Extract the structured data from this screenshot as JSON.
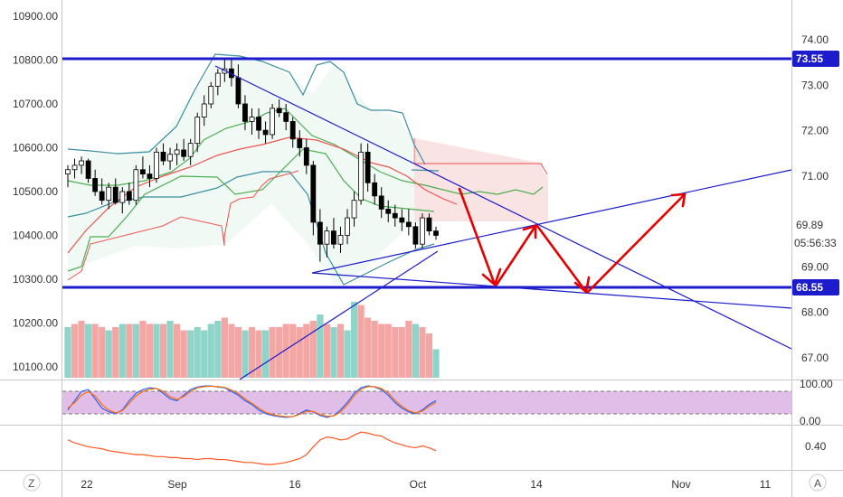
{
  "chart_data": {
    "type": "candlestick",
    "left_axis": {
      "ticks": [
        "10900.00",
        "10800.00",
        "10700.00",
        "10600.00",
        "10500.00",
        "10400.00",
        "10300.00",
        "10200.00",
        "10100.00"
      ],
      "range": [
        10075,
        10920
      ]
    },
    "right_axis": {
      "ticks": [
        "74.00",
        "73.00",
        "72.00",
        "71.00",
        "70.00",
        "69.00",
        "68.00",
        "67.00"
      ],
      "range": [
        66.6,
        74.5
      ]
    },
    "x_axis": {
      "ticks": [
        "22",
        "Sep",
        "16",
        "Oct",
        "14",
        "Nov",
        "11"
      ]
    },
    "price_badges": {
      "upper_level": "73.55",
      "current": "69.89",
      "countdown": "05:56:33",
      "lower_level": "68.55"
    },
    "horizontal_levels": [
      10800,
      10283
    ],
    "stochastic_panel": {
      "ticks": [
        "100.00",
        "0.00"
      ],
      "upper_band": 80,
      "lower_band": 20
    },
    "oscillator_panel": {
      "ticks": [
        "0.40"
      ]
    },
    "colors": {
      "up": "#26a69a",
      "down": "#ef5350",
      "level": "#1c1ccc",
      "arrow": "#e50000",
      "band_fill": "#e1bee7",
      "badge": "#1c1ccc",
      "current_badge": "#ffffff"
    },
    "candles": [
      [
        10540,
        10560,
        10510,
        10550
      ],
      [
        10550,
        10575,
        10530,
        10560
      ],
      [
        10560,
        10580,
        10540,
        10570
      ],
      [
        10570,
        10575,
        10520,
        10530
      ],
      [
        10530,
        10550,
        10490,
        10500
      ],
      [
        10500,
        10530,
        10470,
        10480
      ],
      [
        10480,
        10520,
        10460,
        10510
      ],
      [
        10510,
        10530,
        10470,
        10475
      ],
      [
        10475,
        10510,
        10450,
        10500
      ],
      [
        10500,
        10520,
        10470,
        10480
      ],
      [
        10480,
        10560,
        10470,
        10550
      ],
      [
        10550,
        10580,
        10530,
        10540
      ],
      [
        10540,
        10560,
        10510,
        10530
      ],
      [
        10530,
        10600,
        10520,
        10590
      ],
      [
        10590,
        10610,
        10560,
        10570
      ],
      [
        10570,
        10600,
        10550,
        10585
      ],
      [
        10585,
        10610,
        10560,
        10595
      ],
      [
        10595,
        10620,
        10570,
        10580
      ],
      [
        10580,
        10620,
        10560,
        10610
      ],
      [
        10610,
        10680,
        10590,
        10670
      ],
      [
        10670,
        10720,
        10650,
        10700
      ],
      [
        10700,
        10750,
        10690,
        10740
      ],
      [
        10740,
        10780,
        10720,
        10770
      ],
      [
        10770,
        10800,
        10750,
        10780
      ],
      [
        10780,
        10800,
        10740,
        10760
      ],
      [
        10760,
        10790,
        10690,
        10700
      ],
      [
        10700,
        10720,
        10640,
        10660
      ],
      [
        10660,
        10690,
        10630,
        10670
      ],
      [
        10670,
        10690,
        10620,
        10640
      ],
      [
        10640,
        10660,
        10610,
        10630
      ],
      [
        10630,
        10700,
        10620,
        10690
      ],
      [
        10690,
        10710,
        10670,
        10680
      ],
      [
        10680,
        10700,
        10640,
        10660
      ],
      [
        10660,
        10670,
        10600,
        10620
      ],
      [
        10620,
        10640,
        10580,
        10600
      ],
      [
        10600,
        10620,
        10540,
        10560
      ],
      [
        10560,
        10570,
        10400,
        10430
      ],
      [
        10430,
        10460,
        10340,
        10380
      ],
      [
        10380,
        10420,
        10350,
        10410
      ],
      [
        10410,
        10440,
        10370,
        10380
      ],
      [
        10380,
        10420,
        10360,
        10400
      ],
      [
        10400,
        10460,
        10380,
        10440
      ],
      [
        10440,
        10500,
        10420,
        10480
      ],
      [
        10480,
        10610,
        10470,
        10590
      ],
      [
        10590,
        10610,
        10500,
        10520
      ],
      [
        10520,
        10540,
        10470,
        10490
      ],
      [
        10490,
        10510,
        10440,
        10460
      ],
      [
        10460,
        10480,
        10430,
        10450
      ],
      [
        10450,
        10470,
        10420,
        10440
      ],
      [
        10440,
        10460,
        10410,
        10430
      ],
      [
        10430,
        10460,
        10400,
        10420
      ],
      [
        10420,
        10430,
        10370,
        10380
      ],
      [
        10380,
        10450,
        10370,
        10440
      ],
      [
        10440,
        10450,
        10400,
        10410
      ],
      [
        10410,
        10420,
        10390,
        10400
      ]
    ],
    "volume": [
      0.8,
      0.85,
      0.9,
      0.85,
      0.85,
      0.8,
      0.75,
      0.8,
      0.85,
      0.85,
      0.85,
      0.9,
      0.85,
      0.85,
      0.85,
      0.9,
      0.85,
      0.75,
      0.75,
      0.8,
      0.75,
      0.85,
      0.9,
      0.95,
      0.85,
      0.8,
      0.75,
      0.8,
      0.75,
      0.75,
      0.8,
      0.8,
      0.85,
      0.85,
      0.8,
      0.85,
      0.9,
      1.0,
      0.85,
      0.8,
      0.85,
      0.75,
      1.2,
      1.15,
      0.95,
      0.9,
      0.85,
      0.85,
      0.8,
      0.8,
      0.9,
      0.85,
      0.8,
      0.7,
      0.45
    ],
    "volume_up": [
      true,
      false,
      false,
      true,
      false,
      false,
      true,
      false,
      true,
      false,
      true,
      false,
      false,
      true,
      false,
      true,
      false,
      false,
      true,
      true,
      true,
      true,
      true,
      false,
      false,
      false,
      true,
      false,
      false,
      true,
      false,
      false,
      false,
      false,
      false,
      false,
      false,
      true,
      false,
      true,
      false,
      true,
      true,
      false,
      false,
      false,
      false,
      false,
      false,
      false,
      false,
      true,
      false,
      false,
      true
    ],
    "stochastic_k": [
      30,
      55,
      80,
      85,
      60,
      35,
      25,
      20,
      30,
      55,
      75,
      85,
      90,
      88,
      75,
      60,
      55,
      70,
      85,
      92,
      95,
      95,
      92,
      90,
      80,
      70,
      55,
      45,
      30,
      20,
      15,
      12,
      10,
      12,
      20,
      30,
      25,
      15,
      10,
      15,
      30,
      50,
      75,
      90,
      95,
      92,
      85,
      70,
      50,
      35,
      25,
      20,
      30,
      45,
      55
    ],
    "stochastic_d": [
      35,
      50,
      70,
      80,
      68,
      45,
      30,
      22,
      28,
      48,
      68,
      80,
      86,
      88,
      80,
      66,
      58,
      66,
      80,
      90,
      93,
      94,
      93,
      91,
      84,
      74,
      60,
      48,
      35,
      24,
      18,
      14,
      12,
      12,
      18,
      26,
      26,
      18,
      13,
      14,
      25,
      44,
      68,
      86,
      93,
      93,
      88,
      76,
      56,
      40,
      28,
      22,
      27,
      40,
      50
    ],
    "oscillator": [
      0.55,
      0.52,
      0.5,
      0.48,
      0.47,
      0.46,
      0.44,
      0.43,
      0.42,
      0.41,
      0.4,
      0.4,
      0.39,
      0.38,
      0.38,
      0.37,
      0.37,
      0.36,
      0.36,
      0.35,
      0.36,
      0.36,
      0.35,
      0.35,
      0.34,
      0.33,
      0.32,
      0.32,
      0.31,
      0.3,
      0.3,
      0.31,
      0.32,
      0.34,
      0.36,
      0.4,
      0.48,
      0.55,
      0.58,
      0.57,
      0.55,
      0.56,
      0.6,
      0.63,
      0.62,
      0.6,
      0.59,
      0.55,
      0.52,
      0.5,
      0.48,
      0.47,
      0.49,
      0.47,
      0.44
    ]
  },
  "toolbar": {
    "timezone_button": "Z",
    "auto_scale_button": "A"
  }
}
